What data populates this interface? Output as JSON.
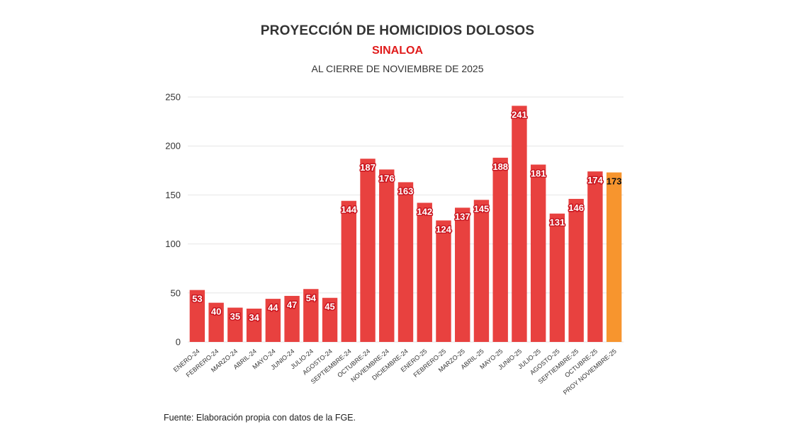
{
  "colors": {
    "bar": "#e8413f",
    "highlight": "#f7952e",
    "title": "#333333",
    "subtitle": "#e01b1b",
    "grid": "#e6e6e6",
    "label_bg": "#c9141e"
  },
  "source": "Fuente: Elaboración propia con datos de la FGE.",
  "chart_data": {
    "type": "bar",
    "title": "PROYECCIÓN DE HOMICIDIOS DOLOSOS",
    "subtitle": "SINALOA",
    "subtitle2": "AL CIERRE DE NOVIEMBRE DE 2025",
    "categories": [
      "ENERO-24",
      "FEBRERO-24",
      "MARZO-24",
      "ABRIL-24",
      "MAYO-24",
      "JUNIO-24",
      "JULIO-24",
      "AGOSTO-24",
      "SEPTIEMBRE-24",
      "OCTUBRE-24",
      "NOVIEMBRE-24",
      "DICIEMBRE-24",
      "ENERO-25",
      "FEBRERO-25",
      "MARZO-25",
      "ABRIL-25",
      "MAYO-25",
      "JUNIO-25",
      "JULIO-25",
      "AGOSTO-25",
      "SEPTIEMBRE-25",
      "OCTUBRE-25",
      "PROY NOVIEMBRE-25"
    ],
    "values": [
      53,
      40,
      35,
      34,
      44,
      47,
      54,
      45,
      144,
      187,
      176,
      163,
      142,
      124,
      137,
      145,
      188,
      241,
      181,
      131,
      146,
      174,
      173
    ],
    "highlight_index": 22,
    "ylim": [
      0,
      250
    ],
    "yticks": [
      0,
      50,
      100,
      150,
      200,
      250
    ],
    "grid": true,
    "legend": "none",
    "xlabel": "",
    "ylabel": ""
  }
}
